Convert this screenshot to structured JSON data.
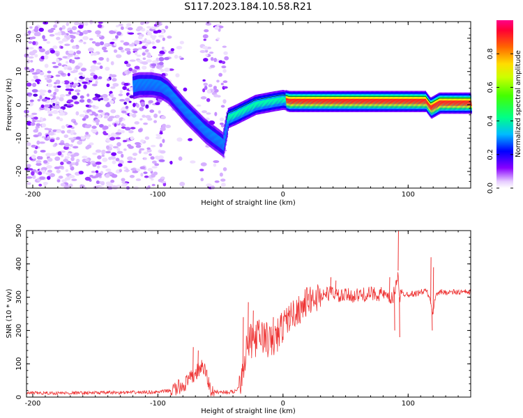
{
  "title": "S117.2023.184.10.58.R21",
  "chart_data": [
    {
      "type": "heatmap",
      "description_series": "spectrogram ridge (dominant frequency vs height)",
      "xlabel": "Height of straight line (km)",
      "ylabel": "Frequency (Hz)",
      "xlim": [
        -205,
        150
      ],
      "ylim": [
        -25,
        25
      ],
      "x_ticks": [
        -200,
        -100,
        0,
        100
      ],
      "y_ticks": [
        -20,
        -10,
        0,
        10,
        20
      ],
      "ridge": {
        "x": [
          -125,
          -115,
          -105,
          -98,
          -92,
          -85,
          -78,
          -70,
          -62,
          -55,
          -48,
          -44,
          -38,
          -30,
          -22,
          -15,
          -8,
          0,
          5,
          10,
          40,
          70,
          80,
          84,
          88,
          110,
          114,
          118,
          125,
          150
        ],
        "y": [
          5,
          6,
          6,
          5.5,
          4,
          1,
          -2,
          -5,
          -8,
          -10,
          -12,
          -4,
          -3,
          -1.5,
          0,
          0.5,
          1,
          1.5,
          1,
          1,
          1,
          1,
          1,
          1,
          1,
          1,
          1,
          -1,
          0.5,
          0.5
        ]
      },
      "colorbar": {
        "label": "Normalized spectral amplitude",
        "range": [
          0,
          1
        ],
        "ticks": [
          "0.0",
          "0.2",
          "0.4",
          "0.6",
          "0.8"
        ],
        "tick_values": [
          0,
          0.2,
          0.4,
          0.6,
          0.8
        ]
      }
    },
    {
      "type": "line",
      "xlabel": "Height of straight line (km)",
      "ylabel": "SNR (10 * v/v)",
      "xlim": [
        -205,
        150
      ],
      "ylim": [
        0,
        500
      ],
      "x_ticks": [
        -200,
        -100,
        0,
        100
      ],
      "y_ticks": [
        0,
        100,
        200,
        300,
        400,
        500
      ],
      "color": "#ee3333",
      "series": [
        {
          "name": "SNR",
          "x": [
            -205,
            -180,
            -150,
            -120,
            -100,
            -90,
            -85,
            -80,
            -75,
            -70,
            -66,
            -62,
            -58,
            -55,
            -50,
            -45,
            -40,
            -36,
            -32,
            -29,
            -26,
            -22,
            -18,
            -14,
            -10,
            -6,
            -2,
            0,
            5,
            10,
            15,
            20,
            25,
            30,
            35,
            40,
            45,
            50,
            60,
            70,
            80,
            85,
            88,
            90,
            92,
            93,
            95,
            100,
            105,
            110,
            115,
            118,
            120,
            122,
            125,
            135,
            150
          ],
          "y": [
            12,
            12,
            13,
            14,
            15,
            20,
            25,
            35,
            50,
            70,
            90,
            80,
            20,
            15,
            15,
            15,
            15,
            25,
            90,
            150,
            165,
            175,
            185,
            180,
            160,
            175,
            200,
            215,
            240,
            255,
            270,
            290,
            295,
            305,
            310,
            315,
            300,
            305,
            305,
            310,
            310,
            290,
            300,
            330,
            380,
            300,
            310,
            310,
            310,
            315,
            320,
            280,
            250,
            310,
            315,
            315,
            315
          ]
        }
      ],
      "spikes": {
        "x": [
          -72,
          -68,
          -32,
          -28,
          -24,
          -8,
          5,
          20,
          38,
          42,
          85,
          89,
          92,
          93,
          118,
          119,
          120
        ],
        "y": [
          150,
          140,
          240,
          285,
          260,
          240,
          260,
          310,
          360,
          350,
          360,
          200,
          500,
          180,
          420,
          200,
          390
        ]
      }
    }
  ]
}
